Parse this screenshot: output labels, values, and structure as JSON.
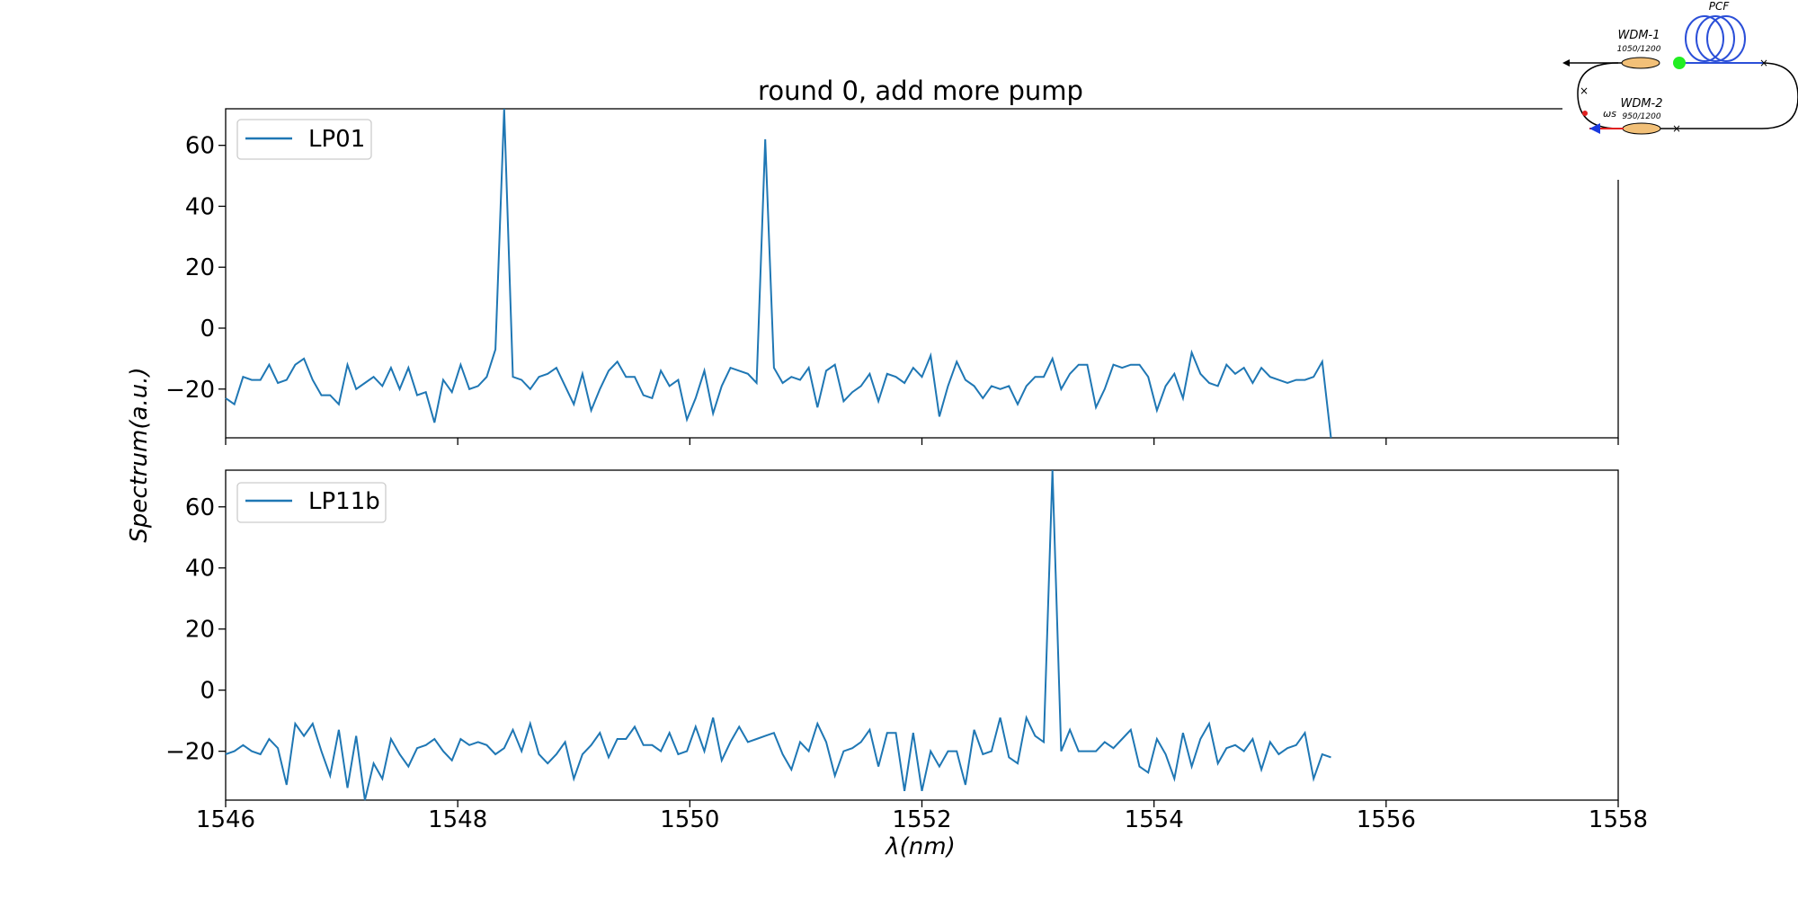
{
  "chart_data": {
    "type": "line",
    "title": "round 0, add more pump",
    "xlabel": "λ(nm)",
    "ylabel": "Spectrum(a.u.)",
    "xlim": [
      1546,
      1558
    ],
    "x_ticks": [
      1546,
      1548,
      1550,
      1552,
      1554,
      1556,
      1558
    ],
    "x_tick_labels": [
      "1546",
      "1548",
      "1550",
      "1552",
      "1554",
      "1556",
      "1558"
    ],
    "panels": [
      {
        "legend": "LP01",
        "ylim": [
          -36,
          72
        ],
        "y_ticks": [
          60,
          40,
          20,
          0,
          -20
        ],
        "y_tick_labels": [
          "60",
          "40",
          "20",
          "0",
          "−20"
        ],
        "x_start": 1546,
        "x_step": 0.075,
        "values": [
          -23,
          -25,
          -16,
          -17,
          -17,
          -12,
          -18,
          -17,
          -12,
          -10,
          -17,
          -22,
          -22,
          -25,
          -12,
          -20,
          -18,
          -16,
          -19,
          -13,
          -20,
          -13,
          -22,
          -21,
          -31,
          -17,
          -21,
          -12,
          -20,
          -19,
          -16,
          -7,
          72,
          -16,
          -17,
          -20,
          -16,
          -15,
          -13,
          -19,
          -25,
          -15,
          -27,
          -20,
          -14,
          -11,
          -16,
          -16,
          -22,
          -23,
          -14,
          -19,
          -17,
          -30,
          -23,
          -14,
          -28,
          -19,
          -13,
          -14,
          -15,
          -18,
          62,
          -13,
          -18,
          -16,
          -17,
          -13,
          -26,
          -14,
          -12,
          -24,
          -21,
          -19,
          -15,
          -24,
          -15,
          -16,
          -18,
          -13,
          -16,
          -9,
          -29,
          -19,
          -11,
          -17,
          -19,
          -23,
          -19,
          -20,
          -19,
          -25,
          -19,
          -16,
          -16,
          -10,
          -20,
          -15,
          -12,
          -12,
          -26,
          -20,
          -12,
          -13,
          -12,
          -12,
          -16,
          -27,
          -19,
          -15,
          -23,
          -8,
          -15,
          -18,
          -19,
          -12,
          -15,
          -13,
          -18,
          -13,
          -16,
          -17,
          -18,
          -17,
          -17,
          -16,
          -11,
          -36
        ]
      },
      {
        "legend": "LP11b",
        "ylim": [
          -36,
          72
        ],
        "y_ticks": [
          60,
          40,
          20,
          0,
          -20
        ],
        "y_tick_labels": [
          "60",
          "40",
          "20",
          "0",
          "−20"
        ],
        "x_start": 1546,
        "x_step": 0.075,
        "values": [
          -21,
          -20,
          -18,
          -20,
          -21,
          -16,
          -19,
          -31,
          -11,
          -15,
          -11,
          -20,
          -28,
          -13,
          -32,
          -15,
          -36,
          -24,
          -29,
          -16,
          -21,
          -25,
          -19,
          -18,
          -16,
          -20,
          -23,
          -16,
          -18,
          -17,
          -18,
          -21,
          -19,
          -13,
          -20,
          -11,
          -21,
          -24,
          -21,
          -17,
          -29,
          -21,
          -18,
          -14,
          -22,
          -16,
          -16,
          -12,
          -18,
          -18,
          -20,
          -14,
          -21,
          -20,
          -12,
          -20,
          -9,
          -23,
          -17,
          -12,
          -17,
          -16,
          -15,
          -14,
          -21,
          -26,
          -17,
          -20,
          -11,
          -17,
          -28,
          -20,
          -19,
          -17,
          -13,
          -25,
          -14,
          -14,
          -33,
          -14,
          -33,
          -20,
          -25,
          -20,
          -20,
          -31,
          -13,
          -21,
          -20,
          -9,
          -22,
          -24,
          -9,
          -15,
          -17,
          72,
          -20,
          -13,
          -20,
          -20,
          -20,
          -17,
          -19,
          -16,
          -13,
          -25,
          -27,
          -16,
          -21,
          -29,
          -14,
          -25,
          -16,
          -11,
          -24,
          -19,
          -18,
          -20,
          -16,
          -26,
          -17,
          -21,
          -19,
          -18,
          -14,
          -29,
          -21,
          -22
        ]
      }
    ]
  },
  "inset": {
    "labels": {
      "pcf": "PCF",
      "wdm1": "WDM-1",
      "wdm1_spec": "1050/1200",
      "wdm2": "WDM-2",
      "wdm2_spec": "950/1200",
      "omega": "ωs"
    },
    "colors": {
      "coil": "#2b4fd8",
      "node": "#22ee22",
      "coupler": "#f2c078",
      "arrow": "#1a3adf",
      "red": "#e02020"
    }
  },
  "colors": {
    "line": "#1f77b4",
    "axis": "#000000",
    "legend_border": "#cccccc"
  }
}
